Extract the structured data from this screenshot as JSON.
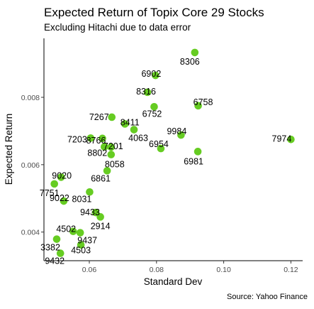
{
  "chart_data": {
    "type": "scatter",
    "title": "Expected Return of Topix Core 29 Stocks",
    "subtitle": "Excluding Hitachi due to data error",
    "caption": "Source: Yahoo Finance",
    "xlabel": "Standard Dev",
    "ylabel": "Expected Return",
    "xlim": [
      0.0465,
      0.1235
    ],
    "ylim": [
      0.00315,
      0.00975
    ],
    "x_ticks": [
      0.06,
      0.08,
      0.1,
      0.12
    ],
    "x_tick_labels": [
      "0.06",
      "0.08",
      "0.10",
      "0.12"
    ],
    "y_ticks": [
      0.004,
      0.006,
      0.008
    ],
    "y_tick_labels": [
      "0.004",
      "0.006",
      "0.008"
    ],
    "grid": false,
    "point_color": "#66cc22",
    "points": [
      {
        "label": "8306",
        "x": 0.0914,
        "y": 0.00933
      },
      {
        "label": "6902",
        "x": 0.0797,
        "y": 0.00865
      },
      {
        "label": "8316",
        "x": 0.0773,
        "y": 0.00815
      },
      {
        "label": "6758",
        "x": 0.0924,
        "y": 0.00775
      },
      {
        "label": "6752",
        "x": 0.0793,
        "y": 0.00772
      },
      {
        "label": "7267",
        "x": 0.0667,
        "y": 0.00741
      },
      {
        "label": "8411",
        "x": 0.0706,
        "y": 0.00721
      },
      {
        "label": "9984",
        "x": 0.0873,
        "y": 0.00688
      },
      {
        "label": "7974",
        "x": 0.12,
        "y": 0.00675
      },
      {
        "label": "4063",
        "x": 0.0733,
        "y": 0.00704
      },
      {
        "label": "7203",
        "x": 0.0604,
        "y": 0.00679
      },
      {
        "label": "8766",
        "x": 0.0639,
        "y": 0.00678
      },
      {
        "label": "7201",
        "x": 0.0665,
        "y": 0.00652
      },
      {
        "label": "8802",
        "x": 0.0645,
        "y": 0.00653
      },
      {
        "label": "6954",
        "x": 0.0813,
        "y": 0.00648
      },
      {
        "label": "6981",
        "x": 0.0923,
        "y": 0.00639
      },
      {
        "label": "8058",
        "x": 0.0665,
        "y": 0.0063
      },
      {
        "label": "6861",
        "x": 0.0653,
        "y": 0.00582
      },
      {
        "label": "9020",
        "x": 0.0516,
        "y": 0.00563
      },
      {
        "label": "7751",
        "x": 0.0496,
        "y": 0.00543
      },
      {
        "label": "8031",
        "x": 0.0601,
        "y": 0.00519
      },
      {
        "label": "9022",
        "x": 0.0524,
        "y": 0.00492
      },
      {
        "label": "9433",
        "x": 0.0619,
        "y": 0.00458
      },
      {
        "label": "2914",
        "x": 0.0633,
        "y": 0.00445
      },
      {
        "label": "4502",
        "x": 0.0552,
        "y": 0.00402
      },
      {
        "label": "9437",
        "x": 0.0573,
        "y": 0.00398
      },
      {
        "label": "3382",
        "x": 0.0503,
        "y": 0.00379
      },
      {
        "label": "4503",
        "x": 0.0575,
        "y": 0.00362
      },
      {
        "label": "9432",
        "x": 0.0514,
        "y": 0.00337
      }
    ]
  }
}
